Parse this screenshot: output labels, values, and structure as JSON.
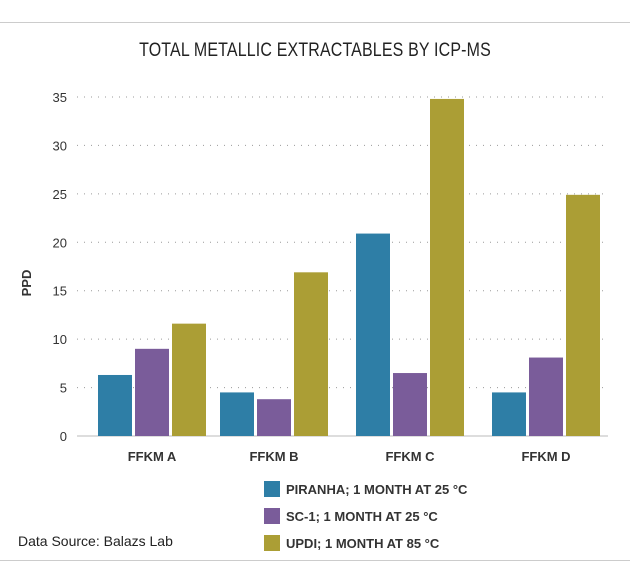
{
  "chart_data": {
    "type": "bar",
    "title": "TOTAL METALLIC EXTRACTABLES BY ICP-MS",
    "xlabel": "",
    "ylabel": "PPD",
    "ylim": [
      0,
      35
    ],
    "yticks": [
      0,
      5,
      10,
      15,
      20,
      25,
      30,
      35
    ],
    "grid": true,
    "legend_position": "bottom",
    "categories": [
      "FFKM A",
      "FFKM B",
      "FFKM C",
      "FFKM D"
    ],
    "series": [
      {
        "name": "PIRANHA; 1 MONTH AT 25 °C",
        "color": "#2e7ea6",
        "values": [
          6.3,
          4.5,
          20.9,
          4.5
        ]
      },
      {
        "name": "SC-1; 1 MONTH AT 25 °C",
        "color": "#7a5c9a",
        "values": [
          9.0,
          3.8,
          6.5,
          8.1
        ]
      },
      {
        "name": "UPDI; 1 MONTH AT 85 °C",
        "color": "#ab9e35",
        "values": [
          11.6,
          16.9,
          34.8,
          24.9
        ]
      }
    ]
  },
  "source": "Data Source: Balazs Lab"
}
